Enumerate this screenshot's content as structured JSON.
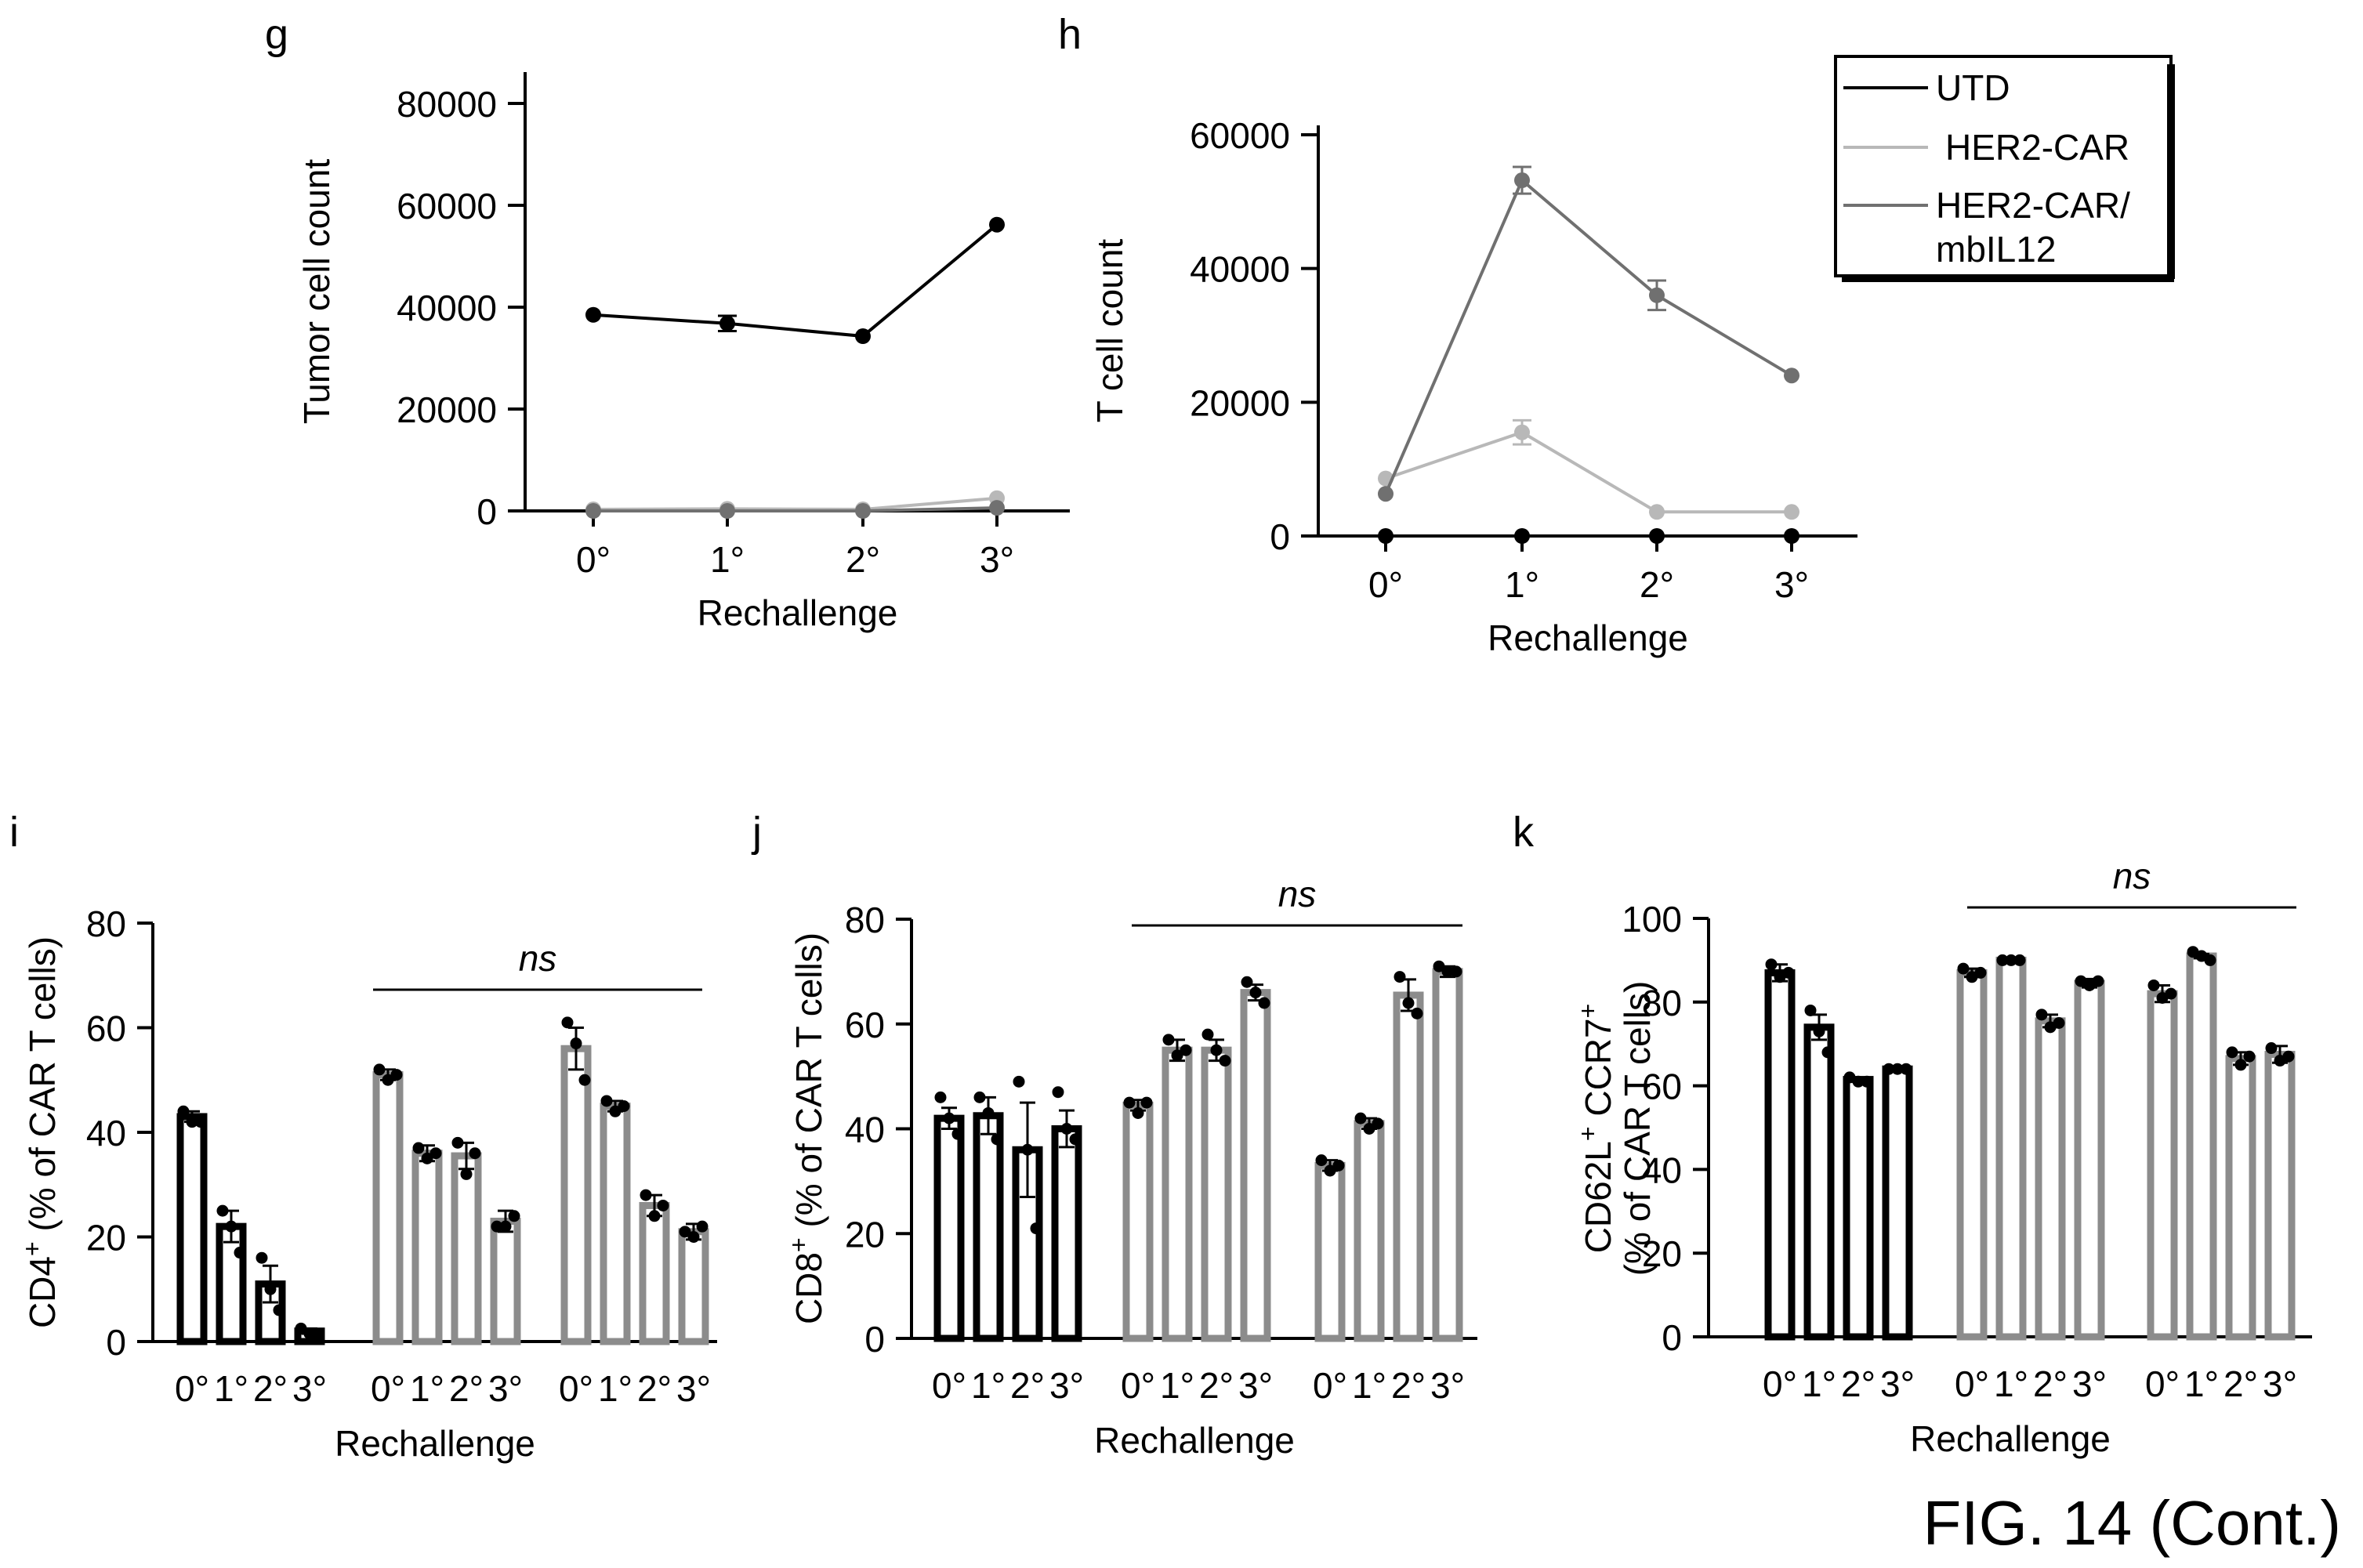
{
  "figure_caption": "FIG. 14 (Cont.)",
  "legend": {
    "entries": [
      {
        "label": "UTD",
        "color": "#000000"
      },
      {
        "label": "HER2-CAR",
        "color": "#b8b8b8"
      },
      {
        "label": "HER2-CAR/\nmbIL12",
        "color": "#707070"
      }
    ]
  },
  "colors": {
    "utd": "#000000",
    "her2car": "#b8b8b8",
    "mbil12": "#707070",
    "bar_gray": "#8c8c8c"
  },
  "chart_data": [
    {
      "panel": "g",
      "type": "line",
      "x": [
        "0°",
        "1°",
        "2°",
        "3°"
      ],
      "xlabel": "Rechallenge",
      "ylabel": "Tumor cell count",
      "ylim": [
        0,
        80000
      ],
      "yticks": [
        0,
        20000,
        40000,
        60000,
        80000
      ],
      "series": [
        {
          "name": "UTD",
          "values": [
            38500,
            36800,
            34300,
            56200
          ],
          "err": [
            0,
            1500,
            0,
            0
          ]
        },
        {
          "name": "HER2-CAR",
          "values": [
            300,
            400,
            300,
            2500
          ],
          "err": [
            0,
            0,
            0,
            0
          ]
        },
        {
          "name": "HER2-CAR/mbIL12",
          "values": [
            0,
            0,
            0,
            600
          ],
          "err": [
            0,
            0,
            0,
            0
          ]
        }
      ]
    },
    {
      "panel": "h",
      "type": "line",
      "x": [
        "0°",
        "1°",
        "2°",
        "3°"
      ],
      "xlabel": "Rechallenge",
      "ylabel": "T cell count",
      "ylim": [
        0,
        60000
      ],
      "yticks": [
        0,
        20000,
        40000,
        60000
      ],
      "series": [
        {
          "name": "UTD",
          "values": [
            0,
            0,
            0,
            0
          ],
          "err": [
            0,
            0,
            0,
            0
          ]
        },
        {
          "name": "HER2-CAR",
          "values": [
            8600,
            15500,
            3600,
            3600
          ],
          "err": [
            0,
            1800,
            0,
            0
          ]
        },
        {
          "name": "HER2-CAR/mbIL12",
          "values": [
            6300,
            53200,
            36000,
            24000
          ],
          "err": [
            0,
            2000,
            2200,
            0
          ]
        }
      ]
    },
    {
      "panel": "i",
      "type": "bar",
      "categories": [
        "0°",
        "1°",
        "2°",
        "3°"
      ],
      "xlabel": "Rechallenge",
      "ylabel_main": "CD4",
      "ylabel_sup": "+",
      "ylabel_rest": " (% of CAR T cells)",
      "ylim": [
        0,
        80
      ],
      "yticks": [
        0,
        20,
        40,
        60,
        80
      ],
      "annotation": "ns",
      "groups": [
        {
          "name": "UTD",
          "values": [
            43,
            22,
            11,
            2
          ],
          "err": [
            1,
            3,
            3.5,
            0.5
          ],
          "points": [
            [
              44,
              42,
              42
            ],
            [
              25,
              22,
              17
            ],
            [
              16,
              10,
              6
            ],
            [
              2.5,
              1.5,
              1
            ]
          ]
        },
        {
          "name": "HER2-CAR",
          "values": [
            51,
            36,
            35.5,
            23
          ],
          "err": [
            1,
            1.5,
            2.5,
            2
          ],
          "points": [
            [
              52,
              50,
              51
            ],
            [
              37,
              35,
              36
            ],
            [
              38,
              32,
              36
            ],
            [
              22,
              22,
              24
            ]
          ]
        },
        {
          "name": "HER2-CAR/mbIL12",
          "values": [
            56,
            45,
            26,
            21
          ],
          "err": [
            4,
            1,
            2,
            1.5
          ],
          "points": [
            [
              61,
              57,
              50
            ],
            [
              46,
              44,
              45
            ],
            [
              28,
              24,
              26
            ],
            [
              21,
              20,
              22
            ]
          ]
        }
      ]
    },
    {
      "panel": "j",
      "type": "bar",
      "categories": [
        "0°",
        "1°",
        "2°",
        "3°"
      ],
      "xlabel": "Rechallenge",
      "ylabel_main": "CD8",
      "ylabel_sup": "+",
      "ylabel_rest": " (% of CAR T cells)",
      "ylim": [
        0,
        80
      ],
      "yticks": [
        0,
        20,
        40,
        60,
        80
      ],
      "annotation": "ns",
      "groups": [
        {
          "name": "UTD",
          "values": [
            42,
            42.5,
            36,
            40
          ],
          "err": [
            2,
            3.5,
            9,
            3.5
          ],
          "points": [
            [
              46,
              42,
              39
            ],
            [
              46,
              43,
              38
            ],
            [
              49,
              36,
              21
            ],
            [
              47,
              40,
              38
            ]
          ]
        },
        {
          "name": "HER2-CAR",
          "values": [
            44.5,
            55,
            55,
            66
          ],
          "err": [
            1,
            2,
            2,
            1.5
          ],
          "points": [
            [
              45,
              43,
              45
            ],
            [
              57,
              54,
              55
            ],
            [
              58,
              55,
              53
            ],
            [
              68,
              66,
              64
            ]
          ]
        },
        {
          "name": "HER2-CAR/mbIL12",
          "values": [
            33,
            41,
            65.5,
            70
          ],
          "err": [
            1,
            1,
            3,
            1
          ],
          "points": [
            [
              34,
              32,
              33
            ],
            [
              42,
              40,
              41
            ],
            [
              69,
              64,
              62
            ],
            [
              71,
              70,
              70
            ]
          ]
        }
      ]
    },
    {
      "panel": "k",
      "type": "bar",
      "categories": [
        "0°",
        "1°",
        "2°",
        "3°"
      ],
      "xlabel": "Rechallenge",
      "ylabel_line1_a": "CD62L",
      "ylabel_line1_b": " CCR7",
      "ylabel_sup": "+",
      "ylabel_line2": "(% of CAR T cells)",
      "ylim": [
        0,
        100
      ],
      "yticks": [
        0,
        20,
        40,
        60,
        80,
        100
      ],
      "annotation": "ns",
      "groups": [
        {
          "name": "UTD",
          "values": [
            87,
            74,
            61.5,
            64
          ],
          "err": [
            2,
            3,
            0.5,
            0.5
          ],
          "points": [
            [
              89,
              86,
              87
            ],
            [
              78,
              73,
              68
            ],
            [
              62,
              61,
              61
            ],
            [
              64,
              64,
              64
            ]
          ]
        },
        {
          "name": "HER2-CAR",
          "values": [
            87,
            90,
            75.5,
            84.5
          ],
          "err": [
            1,
            0.5,
            1.5,
            1
          ],
          "points": [
            [
              88,
              86,
              87
            ],
            [
              90,
              90,
              90
            ],
            [
              77,
              74,
              75
            ],
            [
              85,
              84,
              85
            ]
          ]
        },
        {
          "name": "HER2-CAR/mbIL12",
          "values": [
            82,
            91,
            66.5,
            67.5
          ],
          "err": [
            2,
            0.5,
            1.5,
            2
          ],
          "points": [
            [
              84,
              81,
              82
            ],
            [
              92,
              91,
              90
            ],
            [
              68,
              65,
              67
            ],
            [
              69,
              66,
              67
            ]
          ]
        }
      ]
    }
  ]
}
